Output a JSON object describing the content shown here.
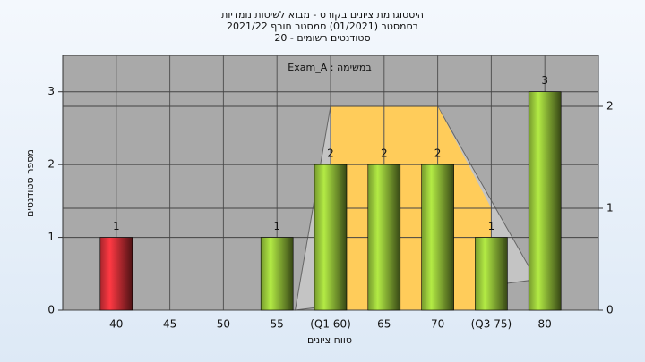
{
  "chart_data": {
    "type": "bar",
    "title": [
      "היסטוגרמת ציונים בקורס - מבוא לשיטות נומריות",
      "בסמסטר (01/2021) סמסטר חורף 2021/22",
      "סטודנטים רשומים - 20"
    ],
    "annotation": "במשימה : Exam_A",
    "x_label": "טווח ציונים",
    "y_label": "מספר סטודנטים",
    "x": [
      40,
      45,
      50,
      55,
      60,
      65,
      70,
      75,
      80
    ],
    "values": [
      1,
      0,
      0,
      1,
      2,
      2,
      2,
      1,
      3
    ],
    "value_labels": [
      "1",
      null,
      null,
      "1",
      "2",
      "2",
      "2",
      "1",
      "3"
    ],
    "colors": [
      "#e0323a",
      "#9ccc3c",
      "#9ccc3c",
      "#9ccc3c",
      "#9ccc3c",
      "#9ccc3c",
      "#9ccc3c",
      "#9ccc3c",
      "#9ccc3c"
    ],
    "xlim": [
      35,
      85
    ],
    "xticks": [
      40,
      45,
      50,
      55,
      {
        "value": 60,
        "label": "(Q1 60)"
      },
      65,
      70,
      {
        "value": 75,
        "label": "(Q3 75)"
      },
      80
    ],
    "ylim": [
      0,
      3.5
    ],
    "yticks": [
      0,
      1,
      2,
      3
    ],
    "y2lim": [
      0,
      2.5
    ],
    "y2ticks": [
      0,
      1,
      2
    ],
    "overlays": [
      {
        "axis": "y2",
        "color": "#c4c4c4",
        "x": [
          56.7,
          60,
          70,
          79.2
        ],
        "values": [
          0,
          2,
          2,
          0.3
        ]
      },
      {
        "axis": "y2",
        "color": "#ffcc5a",
        "x": [
          60,
          60,
          70,
          75,
          75
        ],
        "values": [
          0,
          2,
          2,
          1,
          0
        ]
      }
    ],
    "grid": true
  }
}
